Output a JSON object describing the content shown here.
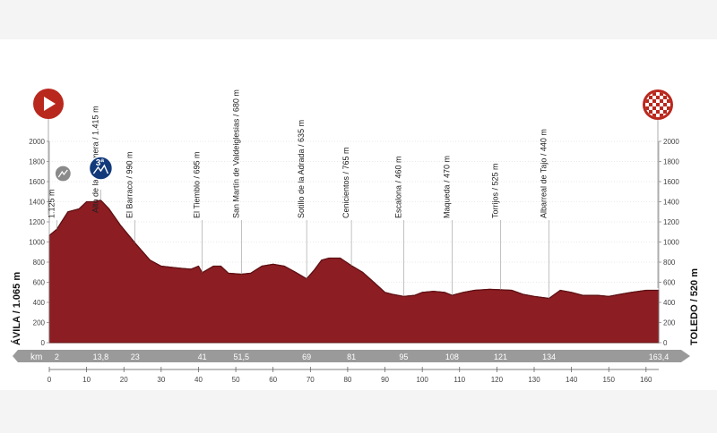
{
  "colors": {
    "profile": "#8c1d22",
    "profile_dark": "#5e1013",
    "start_marker": "#b9281d",
    "category_badge": "#123a7a",
    "uncategorized_badge": "#8a8a8a",
    "km_bar": "#9a9a9a",
    "tick_text": "#444444"
  },
  "start": {
    "label": "ÁVILA / 1.065 m",
    "icon": "play-icon"
  },
  "finish": {
    "label": "TOLEDO / 520 m",
    "icon": "checkered-flag-icon"
  },
  "km_bar": {
    "label": "km"
  },
  "chart_data": {
    "type": "area",
    "title": "",
    "xlabel": "",
    "ylabel": "",
    "xlim": [
      0,
      163.4
    ],
    "ylim": [
      0,
      2000
    ],
    "y_ticks": [
      0,
      200,
      400,
      600,
      800,
      1000,
      1200,
      1400,
      1600,
      1800,
      2000
    ],
    "x_ticks": [
      0,
      10,
      20,
      30,
      40,
      50,
      60,
      70,
      80,
      90,
      100,
      110,
      120,
      130,
      140,
      150,
      160
    ],
    "profile": {
      "x": [
        0,
        2,
        5,
        8,
        10,
        12,
        13.8,
        16,
        19,
        23,
        27,
        30,
        35,
        38,
        40,
        41,
        44,
        46,
        48,
        51.5,
        54,
        57,
        60,
        63,
        66,
        69,
        71,
        73,
        75,
        78,
        81,
        84,
        87,
        90,
        92,
        95,
        98,
        100,
        103,
        106,
        108,
        111,
        114,
        118,
        121,
        124,
        127,
        130,
        134,
        137,
        140,
        143,
        147,
        150,
        153,
        156,
        160,
        163.4
      ],
      "y": [
        1065,
        1125,
        1300,
        1330,
        1400,
        1400,
        1415,
        1330,
        1170,
        990,
        820,
        760,
        740,
        730,
        760,
        695,
        760,
        760,
        690,
        680,
        690,
        760,
        780,
        760,
        700,
        635,
        720,
        820,
        840,
        840,
        765,
        700,
        600,
        500,
        480,
        460,
        470,
        500,
        510,
        500,
        470,
        500,
        520,
        530,
        525,
        520,
        480,
        460,
        440,
        520,
        500,
        470,
        470,
        460,
        480,
        500,
        520,
        520
      ]
    },
    "points": [
      {
        "km": "2",
        "x": 2,
        "alt": 1125,
        "label": "1.125 m",
        "badge": ""
      },
      {
        "km": "13,8",
        "x": 13.8,
        "alt": 1415,
        "label": "Alto de la Paramera / 1.415 m",
        "badge": "3ª"
      },
      {
        "km": "23",
        "x": 23,
        "alt": 990,
        "label": "El Barraco / 990 m",
        "badge": ""
      },
      {
        "km": "41",
        "x": 41,
        "alt": 695,
        "label": "El Tiemblo / 695 m",
        "badge": ""
      },
      {
        "km": "51,5",
        "x": 51.5,
        "alt": 680,
        "label": "San Martín de Valdeiglesias / 680 m",
        "badge": ""
      },
      {
        "km": "69",
        "x": 69,
        "alt": 635,
        "label": "Sotillo de la Adrada / 635 m",
        "badge": ""
      },
      {
        "km": "81",
        "x": 81,
        "alt": 765,
        "label": "Cenicientos / 765 m",
        "badge": ""
      },
      {
        "km": "95",
        "x": 95,
        "alt": 460,
        "label": "Escalona / 460 m",
        "badge": ""
      },
      {
        "km": "108",
        "x": 108,
        "alt": 470,
        "label": "Maqueda / 470 m",
        "badge": ""
      },
      {
        "km": "121",
        "x": 121,
        "alt": 525,
        "label": "Torrijos / 525 m",
        "badge": ""
      },
      {
        "km": "134",
        "x": 134,
        "alt": 440,
        "label": "Albarreal de Tajo / 440 m",
        "badge": ""
      },
      {
        "km": "163,4",
        "x": 163.4,
        "alt": 520,
        "label": "",
        "badge": ""
      }
    ]
  }
}
